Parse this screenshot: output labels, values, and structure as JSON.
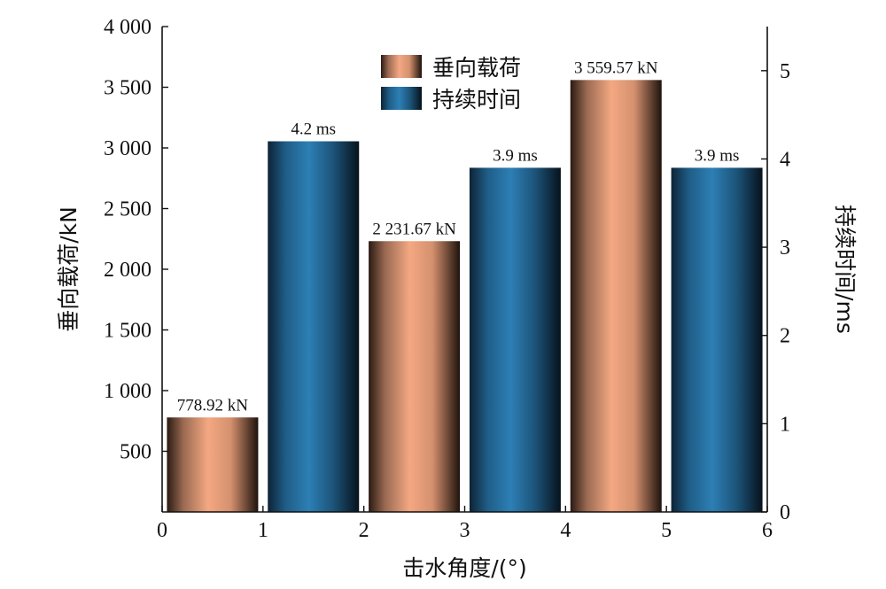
{
  "chart_data": {
    "type": "bar",
    "x": [
      0.5,
      1.5,
      2.5,
      3.5,
      4.5,
      5.5
    ],
    "xlabel": "击水角度/(°)",
    "ylabel_left": "垂向载荷/kN",
    "ylabel_right": "持续时间/ms",
    "xlim": [
      0,
      6
    ],
    "ylim_left": [
      0,
      4000
    ],
    "ylim_right": [
      0,
      5.5
    ],
    "x_ticks": [
      "0",
      "1",
      "2",
      "3",
      "4",
      "5",
      "6"
    ],
    "y_ticks_left": [
      "500",
      "1 000",
      "1 500",
      "2 000",
      "2 500",
      "3 000",
      "3 500",
      "4 000"
    ],
    "y_ticks_left_values": [
      500,
      1000,
      1500,
      2000,
      2500,
      3000,
      3500,
      4000
    ],
    "y_ticks_right": [
      "0",
      "1",
      "2",
      "3",
      "4",
      "5"
    ],
    "y_ticks_right_values": [
      0,
      1,
      2,
      3,
      4,
      5
    ],
    "series": [
      {
        "name": "垂向载荷",
        "axis": "left",
        "color": "#f4a882",
        "x": [
          0.5,
          2.5,
          4.5
        ],
        "values": [
          778.92,
          2231.67,
          3559.57
        ],
        "labels": [
          "778.92 kN",
          "2 231.67 kN",
          "3 559.57 kN"
        ]
      },
      {
        "name": "持续时间",
        "axis": "right",
        "color": "#2d7fb5",
        "x": [
          1.5,
          3.5,
          5.5
        ],
        "values": [
          4.2,
          3.9,
          3.9
        ],
        "labels": [
          "4.2 ms",
          "3.9 ms",
          "3.9 ms"
        ]
      }
    ],
    "legend_position": "top-center",
    "grid": false
  }
}
